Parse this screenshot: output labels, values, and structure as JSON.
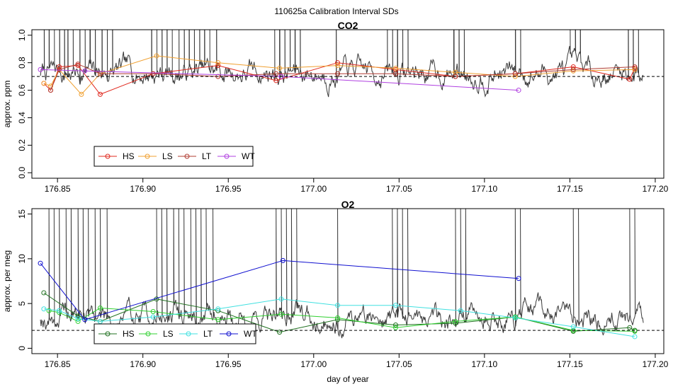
{
  "figure_title": "110625a   Calibration Interval SDs",
  "chart_data": [
    {
      "type": "line",
      "title": "CO2",
      "xlabel": "",
      "ylabel": "approx. ppm",
      "xlim": [
        176.835,
        177.205
      ],
      "ylim": [
        -0.04,
        1.04
      ],
      "xticks": [
        176.85,
        176.9,
        176.95,
        177.0,
        177.05,
        177.1,
        177.15,
        177.2
      ],
      "xtick_labels": [
        "176.85",
        "176.90",
        "176.95",
        "177.00",
        "177.05",
        "177.10",
        "177.15",
        "177.20"
      ],
      "yticks": [
        0.0,
        0.2,
        0.4,
        0.6,
        0.8,
        1.0
      ],
      "ytick_labels": [
        "0.0",
        "0.2",
        "0.4",
        "0.6",
        "0.8",
        "1.0"
      ],
      "reference_line": 0.7,
      "raw_trace": {
        "color": "#3a3a3a",
        "base": 0.73,
        "noise": 0.08,
        "min": 0.53,
        "max": 1.04,
        "seed": 7,
        "spikes_x": [
          176.842,
          176.845,
          176.848,
          176.851,
          176.854,
          176.856,
          176.859,
          176.863,
          176.866,
          176.869,
          176.872,
          176.876,
          176.879,
          176.882,
          176.905,
          176.908,
          176.911,
          176.914,
          176.917,
          176.921,
          176.924,
          176.927,
          176.93,
          176.933,
          176.936,
          176.939,
          176.943,
          176.977,
          176.98,
          176.983,
          176.986,
          176.989,
          176.992,
          177.013,
          177.043,
          177.046,
          177.049,
          177.052,
          177.055,
          177.082,
          177.085,
          177.088,
          177.118,
          177.121,
          177.15,
          177.153,
          177.156,
          177.184,
          177.187,
          177.19
        ]
      },
      "series": [
        {
          "name": "HS",
          "color": "#e0281e",
          "x": [
            176.842,
            176.846,
            176.851,
            176.862,
            176.875,
            176.906,
            176.944,
            176.978,
            177.014,
            177.048,
            177.083,
            177.118,
            177.152,
            177.185,
            177.188
          ],
          "y": [
            0.65,
            0.6,
            0.77,
            0.78,
            0.57,
            0.72,
            0.78,
            0.67,
            0.8,
            0.75,
            0.7,
            0.72,
            0.77,
            0.68,
            0.76
          ]
        },
        {
          "name": "LS",
          "color": "#f0a030",
          "x": [
            176.842,
            176.846,
            176.851,
            176.864,
            176.875,
            176.908,
            176.944,
            176.98,
            177.014,
            177.048,
            177.083,
            177.118,
            177.152,
            177.188
          ],
          "y": [
            0.65,
            0.63,
            0.75,
            0.57,
            0.72,
            0.85,
            0.8,
            0.76,
            0.78,
            0.76,
            0.73,
            0.7,
            0.74,
            0.75
          ]
        },
        {
          "name": "LT",
          "color": "#b03c32",
          "x": [
            176.846,
            176.851,
            176.862,
            176.875,
            176.906,
            176.944,
            176.978,
            177.014,
            177.048,
            177.083,
            177.118,
            177.152,
            177.188
          ],
          "y": [
            0.6,
            0.75,
            0.79,
            0.72,
            0.72,
            0.7,
            0.72,
            0.72,
            0.72,
            0.7,
            0.72,
            0.75,
            0.77
          ]
        },
        {
          "name": "WT",
          "color": "#b040e0",
          "x": [
            176.84,
            176.866,
            176.981,
            177.12
          ],
          "y": [
            0.75,
            0.74,
            0.7,
            0.6
          ]
        }
      ],
      "legend": {
        "position": "bottom-left",
        "entries": [
          "HS",
          "LS",
          "LT",
          "WT"
        ]
      }
    },
    {
      "type": "line",
      "title": "O2",
      "xlabel": "day of year",
      "ylabel": "approx. per meg",
      "xlim": [
        176.835,
        177.205
      ],
      "ylim": [
        -0.6,
        15.6
      ],
      "xticks": [
        176.85,
        176.9,
        176.95,
        177.0,
        177.05,
        177.1,
        177.15,
        177.2
      ],
      "xtick_labels": [
        "176.85",
        "176.90",
        "176.95",
        "177.00",
        "177.05",
        "177.10",
        "177.15",
        "177.20"
      ],
      "yticks": [
        0,
        5,
        10,
        15
      ],
      "ytick_labels": [
        "0",
        "5",
        "10",
        "15"
      ],
      "reference_line": 2.0,
      "raw_trace": {
        "color": "#3a3a3a",
        "base": 3.6,
        "noise": 1.3,
        "min": 0.3,
        "max": 15.6,
        "seed": 19,
        "spikes_x": [
          176.845,
          176.848,
          176.851,
          176.855,
          176.858,
          176.862,
          176.865,
          176.868,
          176.872,
          176.875,
          176.879,
          176.908,
          176.911,
          176.914,
          176.918,
          176.921,
          176.924,
          176.928,
          176.931,
          176.934,
          176.937,
          176.941,
          176.978,
          176.981,
          176.984,
          176.987,
          176.99,
          177.014,
          177.046,
          177.049,
          177.052,
          177.055,
          177.083,
          177.086,
          177.089,
          177.118,
          177.121,
          177.152,
          177.155,
          177.185,
          177.188
        ]
      },
      "series": [
        {
          "name": "HS",
          "color": "#207020",
          "x": [
            176.842,
            176.862,
            176.875,
            176.908,
            176.944,
            176.98,
            177.014,
            177.048,
            177.083,
            177.118,
            177.152,
            177.185,
            177.188
          ],
          "y": [
            6.2,
            3.6,
            3.0,
            5.5,
            4.2,
            1.8,
            3.2,
            2.6,
            2.8,
            3.5,
            1.9,
            2.3,
            2.0
          ]
        },
        {
          "name": "LS",
          "color": "#30d030",
          "x": [
            176.845,
            176.851,
            176.862,
            176.875,
            176.906,
            176.944,
            176.981,
            177.014,
            177.048,
            177.083,
            177.118,
            177.152,
            177.188
          ],
          "y": [
            4.2,
            4.0,
            3.0,
            4.5,
            4.1,
            3.2,
            3.8,
            3.4,
            2.3,
            3.0,
            3.5,
            2.0,
            1.9
          ]
        },
        {
          "name": "LT",
          "color": "#40e0e0",
          "x": [
            176.842,
            176.851,
            176.862,
            176.875,
            176.906,
            176.944,
            176.981,
            177.014,
            177.048,
            177.086,
            177.118,
            177.152,
            177.188
          ],
          "y": [
            4.4,
            4.2,
            3.3,
            3.0,
            3.5,
            4.4,
            5.5,
            4.8,
            4.8,
            4.2,
            3.4,
            2.4,
            1.3
          ]
        },
        {
          "name": "WT",
          "color": "#1010d0",
          "x": [
            176.84,
            176.866,
            176.982,
            177.12
          ],
          "y": [
            9.5,
            3.2,
            9.8,
            7.8
          ]
        }
      ],
      "legend": {
        "position": "bottom-left",
        "entries": [
          "HS",
          "LS",
          "LT",
          "WT"
        ]
      }
    }
  ]
}
